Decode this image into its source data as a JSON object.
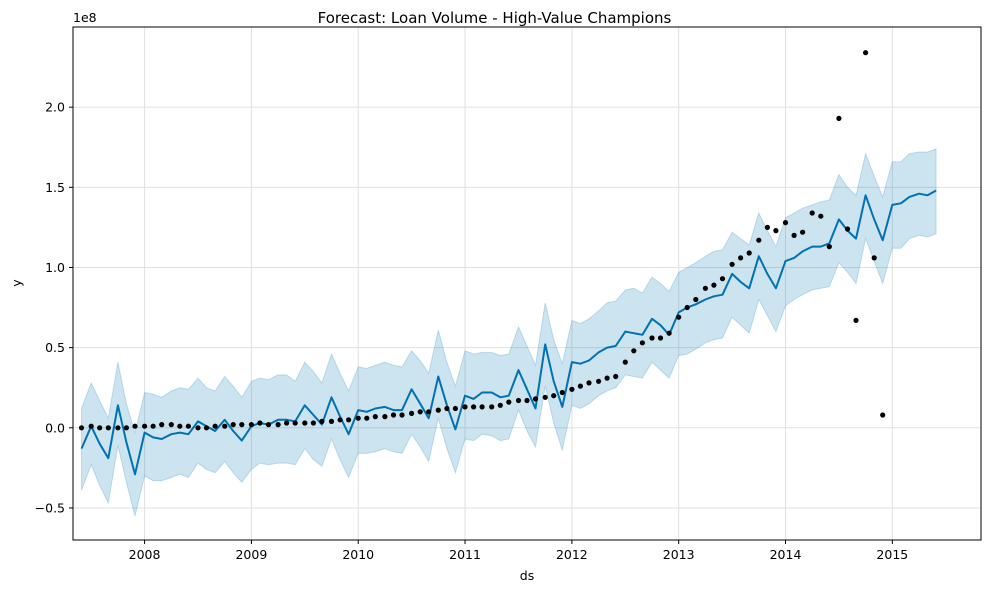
{
  "chart_data": {
    "type": "line",
    "title": "Forecast: Loan Volume - High-Value Champions",
    "xlabel": "ds",
    "ylabel": "y",
    "y_multiplier_label": "1e8",
    "xlim": [
      2007.33,
      2015.83
    ],
    "ylim": [
      -0.7,
      2.5
    ],
    "grid": true,
    "x_ticks": [
      {
        "value": 2008,
        "label": "2008"
      },
      {
        "value": 2009,
        "label": "2009"
      },
      {
        "value": 2010,
        "label": "2010"
      },
      {
        "value": 2011,
        "label": "2011"
      },
      {
        "value": 2012,
        "label": "2012"
      },
      {
        "value": 2013,
        "label": "2013"
      },
      {
        "value": 2014,
        "label": "2014"
      },
      {
        "value": 2015,
        "label": "2015"
      }
    ],
    "y_ticks": [
      {
        "value": -0.5,
        "label": "−0.5"
      },
      {
        "value": 0.0,
        "label": "0.0"
      },
      {
        "value": 0.5,
        "label": "0.5"
      },
      {
        "value": 1.0,
        "label": "1.0"
      },
      {
        "value": 1.5,
        "label": "1.5"
      },
      {
        "value": 2.0,
        "label": "2.0"
      }
    ],
    "colors": {
      "forecast_line": "#0072B2",
      "interval_fill": "#0072B2",
      "observed_points": "#000000",
      "grid": "#e0e0e0"
    },
    "forecast": {
      "x": [
        2007.41,
        2007.5,
        2007.58,
        2007.66,
        2007.75,
        2007.83,
        2007.91,
        2008.0,
        2008.08,
        2008.16,
        2008.25,
        2008.33,
        2008.41,
        2008.5,
        2008.58,
        2008.66,
        2008.75,
        2008.83,
        2008.91,
        2009.0,
        2009.08,
        2009.16,
        2009.25,
        2009.33,
        2009.41,
        2009.5,
        2009.58,
        2009.66,
        2009.75,
        2009.83,
        2009.91,
        2010.0,
        2010.08,
        2010.16,
        2010.25,
        2010.33,
        2010.41,
        2010.5,
        2010.58,
        2010.66,
        2010.75,
        2010.83,
        2010.91,
        2011.0,
        2011.08,
        2011.16,
        2011.25,
        2011.33,
        2011.41,
        2011.5,
        2011.58,
        2011.66,
        2011.75,
        2011.83,
        2011.91,
        2012.0,
        2012.08,
        2012.16,
        2012.25,
        2012.33,
        2012.41,
        2012.5,
        2012.58,
        2012.66,
        2012.75,
        2012.83,
        2012.91,
        2013.0,
        2013.08,
        2013.16,
        2013.25,
        2013.33,
        2013.41,
        2013.5,
        2013.58,
        2013.66,
        2013.75,
        2013.83,
        2013.91,
        2014.0,
        2014.08,
        2014.16,
        2014.25,
        2014.33,
        2014.41,
        2014.5,
        2014.58,
        2014.66,
        2014.75,
        2014.83,
        2014.91,
        2015.0,
        2015.08,
        2015.16,
        2015.25,
        2015.33,
        2015.41
      ],
      "yhat": [
        -0.13,
        0.01,
        -0.1,
        -0.19,
        0.14,
        -0.09,
        -0.29,
        -0.03,
        -0.06,
        -0.07,
        -0.04,
        -0.03,
        -0.04,
        0.04,
        0.01,
        -0.02,
        0.05,
        -0.02,
        -0.08,
        0.01,
        0.03,
        0.02,
        0.05,
        0.05,
        0.04,
        0.14,
        0.08,
        0.02,
        0.19,
        0.07,
        -0.04,
        0.11,
        0.1,
        0.12,
        0.13,
        0.11,
        0.11,
        0.24,
        0.15,
        0.06,
        0.32,
        0.14,
        -0.01,
        0.2,
        0.18,
        0.22,
        0.22,
        0.19,
        0.2,
        0.36,
        0.24,
        0.12,
        0.52,
        0.29,
        0.13,
        0.41,
        0.4,
        0.42,
        0.47,
        0.5,
        0.51,
        0.6,
        0.59,
        0.58,
        0.68,
        0.64,
        0.58,
        0.72,
        0.75,
        0.77,
        0.8,
        0.82,
        0.83,
        0.96,
        0.91,
        0.87,
        1.07,
        0.96,
        0.87,
        1.04,
        1.06,
        1.1,
        1.13,
        1.13,
        1.15,
        1.3,
        1.23,
        1.18,
        1.45,
        1.3,
        1.17,
        1.39,
        1.4,
        1.44,
        1.46,
        1.45,
        1.48
      ],
      "upper": [
        0.12,
        0.28,
        0.17,
        0.06,
        0.41,
        0.15,
        -0.03,
        0.22,
        0.21,
        0.19,
        0.23,
        0.25,
        0.24,
        0.31,
        0.25,
        0.23,
        0.32,
        0.26,
        0.19,
        0.29,
        0.31,
        0.3,
        0.33,
        0.33,
        0.29,
        0.41,
        0.35,
        0.28,
        0.46,
        0.34,
        0.23,
        0.38,
        0.37,
        0.39,
        0.41,
        0.39,
        0.38,
        0.48,
        0.42,
        0.34,
        0.61,
        0.41,
        0.26,
        0.48,
        0.46,
        0.47,
        0.47,
        0.45,
        0.46,
        0.63,
        0.51,
        0.39,
        0.78,
        0.55,
        0.4,
        0.67,
        0.65,
        0.68,
        0.73,
        0.78,
        0.79,
        0.86,
        0.87,
        0.84,
        0.94,
        0.9,
        0.85,
        0.97,
        1.0,
        1.03,
        1.07,
        1.1,
        1.11,
        1.22,
        1.18,
        1.14,
        1.34,
        1.23,
        1.13,
        1.31,
        1.34,
        1.37,
        1.39,
        1.41,
        1.42,
        1.58,
        1.5,
        1.45,
        1.71,
        1.57,
        1.44,
        1.66,
        1.66,
        1.71,
        1.72,
        1.72,
        1.74
      ],
      "lower": [
        -0.39,
        -0.23,
        -0.36,
        -0.47,
        -0.11,
        -0.34,
        -0.55,
        -0.3,
        -0.33,
        -0.33,
        -0.31,
        -0.29,
        -0.31,
        -0.22,
        -0.26,
        -0.28,
        -0.21,
        -0.28,
        -0.34,
        -0.26,
        -0.22,
        -0.23,
        -0.22,
        -0.22,
        -0.23,
        -0.13,
        -0.2,
        -0.24,
        -0.07,
        -0.2,
        -0.31,
        -0.16,
        -0.16,
        -0.15,
        -0.13,
        -0.15,
        -0.16,
        -0.04,
        -0.12,
        -0.21,
        0.06,
        -0.13,
        -0.28,
        -0.07,
        -0.08,
        -0.04,
        -0.05,
        -0.08,
        -0.07,
        0.11,
        -0.02,
        -0.12,
        0.26,
        0.03,
        -0.14,
        0.14,
        0.12,
        0.15,
        0.2,
        0.23,
        0.25,
        0.33,
        0.32,
        0.31,
        0.41,
        0.36,
        0.31,
        0.45,
        0.46,
        0.49,
        0.53,
        0.55,
        0.56,
        0.69,
        0.64,
        0.59,
        0.8,
        0.7,
        0.6,
        0.76,
        0.8,
        0.83,
        0.86,
        0.87,
        0.88,
        1.03,
        0.97,
        0.9,
        1.18,
        1.04,
        0.9,
        1.12,
        1.12,
        1.18,
        1.2,
        1.19,
        1.21
      ]
    },
    "observed": {
      "x": [
        2007.41,
        2007.5,
        2007.58,
        2007.66,
        2007.75,
        2007.83,
        2007.91,
        2008.0,
        2008.08,
        2008.16,
        2008.25,
        2008.33,
        2008.41,
        2008.5,
        2008.58,
        2008.66,
        2008.75,
        2008.83,
        2008.91,
        2009.0,
        2009.08,
        2009.16,
        2009.25,
        2009.33,
        2009.41,
        2009.5,
        2009.58,
        2009.66,
        2009.75,
        2009.83,
        2009.91,
        2010.0,
        2010.08,
        2010.16,
        2010.25,
        2010.33,
        2010.41,
        2010.5,
        2010.58,
        2010.66,
        2010.75,
        2010.83,
        2010.91,
        2011.0,
        2011.08,
        2011.16,
        2011.25,
        2011.33,
        2011.41,
        2011.5,
        2011.58,
        2011.66,
        2011.75,
        2011.83,
        2011.91,
        2012.0,
        2012.08,
        2012.16,
        2012.25,
        2012.33,
        2012.41,
        2012.5,
        2012.58,
        2012.66,
        2012.75,
        2012.83,
        2012.91,
        2013.0,
        2013.08,
        2013.16,
        2013.25,
        2013.33,
        2013.41,
        2013.5,
        2013.58,
        2013.66,
        2013.75,
        2013.83,
        2013.91,
        2014.0,
        2014.08,
        2014.16,
        2014.25,
        2014.33,
        2014.41,
        2014.5,
        2014.58,
        2014.66,
        2014.75,
        2014.83,
        2014.91
      ],
      "y": [
        0.0,
        0.01,
        0.0,
        0.0,
        0.0,
        0.0,
        0.01,
        0.01,
        0.01,
        0.02,
        0.02,
        0.01,
        0.01,
        0.0,
        0.0,
        0.01,
        0.01,
        0.02,
        0.02,
        0.02,
        0.03,
        0.02,
        0.02,
        0.03,
        0.03,
        0.03,
        0.03,
        0.04,
        0.04,
        0.05,
        0.05,
        0.06,
        0.06,
        0.07,
        0.07,
        0.08,
        0.08,
        0.09,
        0.1,
        0.1,
        0.11,
        0.12,
        0.12,
        0.13,
        0.13,
        0.13,
        0.13,
        0.14,
        0.16,
        0.17,
        0.17,
        0.18,
        0.19,
        0.2,
        0.22,
        0.24,
        0.26,
        0.28,
        0.29,
        0.31,
        0.32,
        0.41,
        0.48,
        0.53,
        0.56,
        0.56,
        0.59,
        0.69,
        0.75,
        0.8,
        0.87,
        0.89,
        0.93,
        1.02,
        1.06,
        1.09,
        1.17,
        1.25,
        1.23,
        1.28,
        1.2,
        1.22,
        1.34,
        1.32,
        1.13,
        1.93,
        1.24,
        0.67,
        2.34,
        1.06,
        0.08
      ]
    }
  }
}
